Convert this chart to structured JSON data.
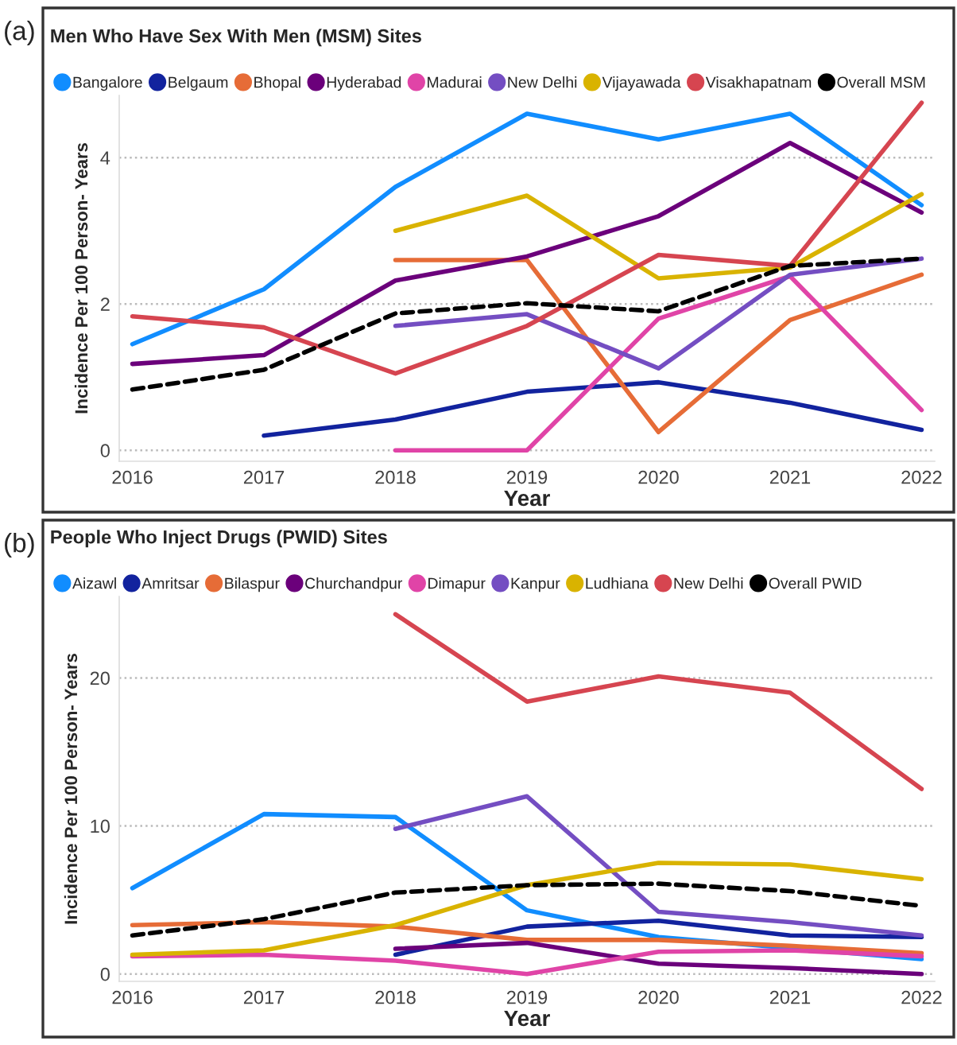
{
  "chart_data": [
    {
      "type": "line",
      "title": "Men Who Have Sex With Men (MSM) Sites",
      "xlabel": "Year",
      "ylabel": "Incidence Per 100 Person- Years",
      "annotations": [
        "(a)"
      ],
      "x": [
        2016,
        2017,
        2018,
        2019,
        2020,
        2021,
        2022
      ],
      "xlim": [
        2015.9,
        2022.1
      ],
      "xticks": [
        2016,
        2017,
        2018,
        2019,
        2020,
        2021,
        2022
      ],
      "ylim": [
        -0.15,
        4.85
      ],
      "yticks": [
        0,
        2,
        4
      ],
      "grid": "y",
      "legend": "top left",
      "marker": "none",
      "series": [
        {
          "name": "Bangalore",
          "color": "#118dff",
          "values": [
            1.45,
            2.2,
            3.6,
            4.6,
            4.25,
            4.6,
            3.35
          ]
        },
        {
          "name": "Belgaum",
          "color": "#12239e",
          "values": [
            null,
            0.2,
            0.42,
            0.8,
            0.93,
            0.65,
            0.28
          ]
        },
        {
          "name": "Bhopal",
          "color": "#e66c37",
          "values": [
            null,
            null,
            2.6,
            2.6,
            0.25,
            1.78,
            2.4
          ]
        },
        {
          "name": "Hyderabad",
          "color": "#6b007b",
          "values": [
            1.18,
            1.3,
            2.32,
            2.65,
            3.2,
            4.2,
            3.25
          ]
        },
        {
          "name": "Madurai",
          "color": "#e044a7",
          "values": [
            null,
            null,
            0,
            0,
            1.8,
            2.38,
            0.55
          ]
        },
        {
          "name": "New Delhi",
          "color": "#744ec2",
          "values": [
            null,
            null,
            1.7,
            1.86,
            1.12,
            2.4,
            2.62
          ]
        },
        {
          "name": "Vijayawada",
          "color": "#d9b300",
          "values": [
            null,
            null,
            3.0,
            3.48,
            2.35,
            2.5,
            3.5
          ]
        },
        {
          "name": "Visakhapatnam",
          "color": "#d64550",
          "values": [
            1.83,
            1.68,
            1.05,
            1.7,
            2.67,
            2.52,
            4.75
          ]
        },
        {
          "name": "Overall MSM",
          "color": "#000000",
          "line_style": "dashed",
          "values": [
            0.83,
            1.1,
            1.87,
            2.01,
            1.9,
            2.52,
            2.62
          ]
        }
      ]
    },
    {
      "type": "line",
      "title": "People Who Inject Drugs (PWID) Sites",
      "xlabel": "Year",
      "ylabel": "Incidence Per 100 Person- Years",
      "annotations": [
        "(b)"
      ],
      "x": [
        2016,
        2017,
        2018,
        2019,
        2020,
        2021,
        2022
      ],
      "xlim": [
        2015.9,
        2022.1
      ],
      "xticks": [
        2016,
        2017,
        2018,
        2019,
        2020,
        2021,
        2022
      ],
      "ylim": [
        -0.5,
        25.5
      ],
      "yticks": [
        0,
        10,
        20
      ],
      "grid": "y",
      "legend": "top left",
      "marker": "none",
      "series": [
        {
          "name": "Aizawl",
          "color": "#118dff",
          "values": [
            5.8,
            10.8,
            10.6,
            4.3,
            2.5,
            null,
            1.0
          ]
        },
        {
          "name": "Amritsar",
          "color": "#12239e",
          "values": [
            null,
            null,
            1.3,
            3.2,
            3.6,
            2.6,
            2.5
          ]
        },
        {
          "name": "Bilaspur",
          "color": "#e66c37",
          "values": [
            3.3,
            3.5,
            3.2,
            2.3,
            2.3,
            1.9,
            1.4
          ]
        },
        {
          "name": "Churchandpur",
          "color": "#6b007b",
          "values": [
            null,
            null,
            1.7,
            2.1,
            0.7,
            0.4,
            0.0
          ]
        },
        {
          "name": "Dimapur",
          "color": "#e044a7",
          "values": [
            1.2,
            1.3,
            0.9,
            0.0,
            1.5,
            1.6,
            1.2
          ]
        },
        {
          "name": "Kanpur",
          "color": "#744ec2",
          "values": [
            null,
            null,
            9.8,
            12.0,
            4.2,
            3.5,
            2.6
          ]
        },
        {
          "name": "Ludhiana",
          "color": "#d9b300",
          "values": [
            1.3,
            1.6,
            3.3,
            6.0,
            7.5,
            7.4,
            6.4
          ]
        },
        {
          "name": "New Delhi",
          "color": "#d64550",
          "values": [
            null,
            null,
            24.3,
            18.4,
            20.1,
            19.0,
            12.5
          ]
        },
        {
          "name": "Overall PWID",
          "color": "#000000",
          "line_style": "dashed",
          "values": [
            2.6,
            3.7,
            5.5,
            6.0,
            6.1,
            5.6,
            4.6
          ]
        }
      ]
    }
  ]
}
